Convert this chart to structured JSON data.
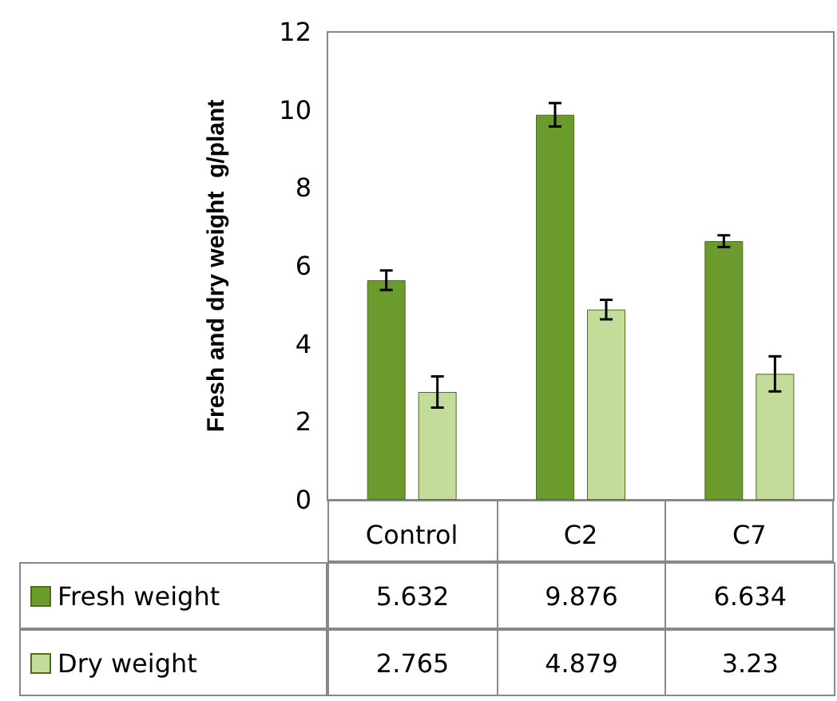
{
  "chart_data": {
    "type": "bar",
    "ylabel": "Fresh and dry weight  g/plant",
    "categories": [
      "Control",
      "C2",
      "C7"
    ],
    "series": [
      {
        "name": "Fresh weight",
        "color": "#6b9b2c",
        "values": [
          5.632,
          9.876,
          6.634
        ],
        "errors": [
          0.25,
          0.3,
          0.15
        ]
      },
      {
        "name": "Dry weight",
        "color": "#c3dc9a",
        "values": [
          2.765,
          4.879,
          3.23
        ],
        "errors": [
          0.4,
          0.25,
          0.45
        ]
      }
    ],
    "ylim": [
      0,
      12
    ],
    "yticks": [
      0,
      2,
      4,
      6,
      8,
      10,
      12
    ],
    "grid": false,
    "legend": "bottom",
    "data_labels": true
  }
}
